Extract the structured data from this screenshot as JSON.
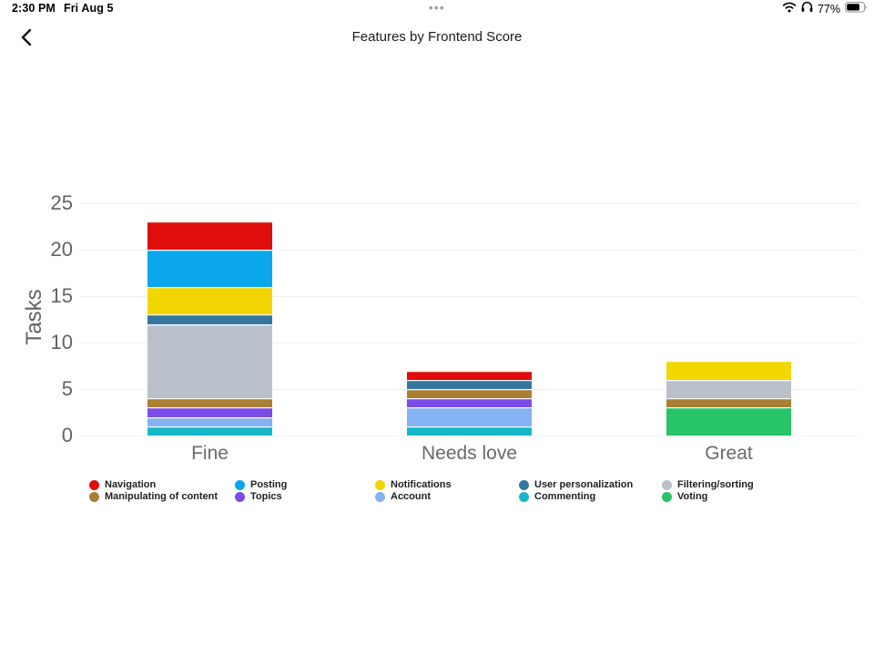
{
  "status_bar": {
    "time": "2:30 PM",
    "date": "Fri Aug 5",
    "dots": "•••",
    "battery_percent": "77%",
    "icons": [
      "wifi-icon",
      "headphones-icon",
      "battery-icon"
    ]
  },
  "nav": {
    "title": "Features by Frontend Score",
    "back_icon": "chevron-left"
  },
  "chart_data": {
    "type": "bar",
    "stacked": true,
    "title": "Features by Frontend Score",
    "xlabel": "",
    "ylabel": "Tasks",
    "categories": [
      "Fine",
      "Needs love",
      "Great"
    ],
    "y_ticks": [
      0,
      5,
      10,
      15,
      20,
      25
    ],
    "ylim": [
      0,
      25
    ],
    "grid": true,
    "legend_position": "bottom",
    "series": [
      {
        "name": "Navigation",
        "color": "#e00d0d",
        "values": [
          3,
          1,
          0
        ]
      },
      {
        "name": "Posting",
        "color": "#0aa7ec",
        "values": [
          4,
          0,
          0
        ]
      },
      {
        "name": "Notifications",
        "color": "#f2d600",
        "values": [
          3,
          0,
          2
        ]
      },
      {
        "name": "User personalization",
        "color": "#35779e",
        "values": [
          1,
          1,
          0
        ]
      },
      {
        "name": "Filtering/sorting",
        "color": "#b9c0c9",
        "values": [
          8,
          0,
          2
        ]
      },
      {
        "name": "Manipulating of content",
        "color": "#a87f33",
        "values": [
          1,
          1,
          1
        ]
      },
      {
        "name": "Topics",
        "color": "#7b4ce9",
        "values": [
          1,
          1,
          0
        ]
      },
      {
        "name": "Account",
        "color": "#84b2f2",
        "values": [
          1,
          2,
          0
        ]
      },
      {
        "name": "Commenting",
        "color": "#16b8c8",
        "values": [
          1,
          1,
          0
        ]
      },
      {
        "name": "Voting",
        "color": "#27c468",
        "values": [
          0,
          0,
          3
        ]
      }
    ]
  }
}
